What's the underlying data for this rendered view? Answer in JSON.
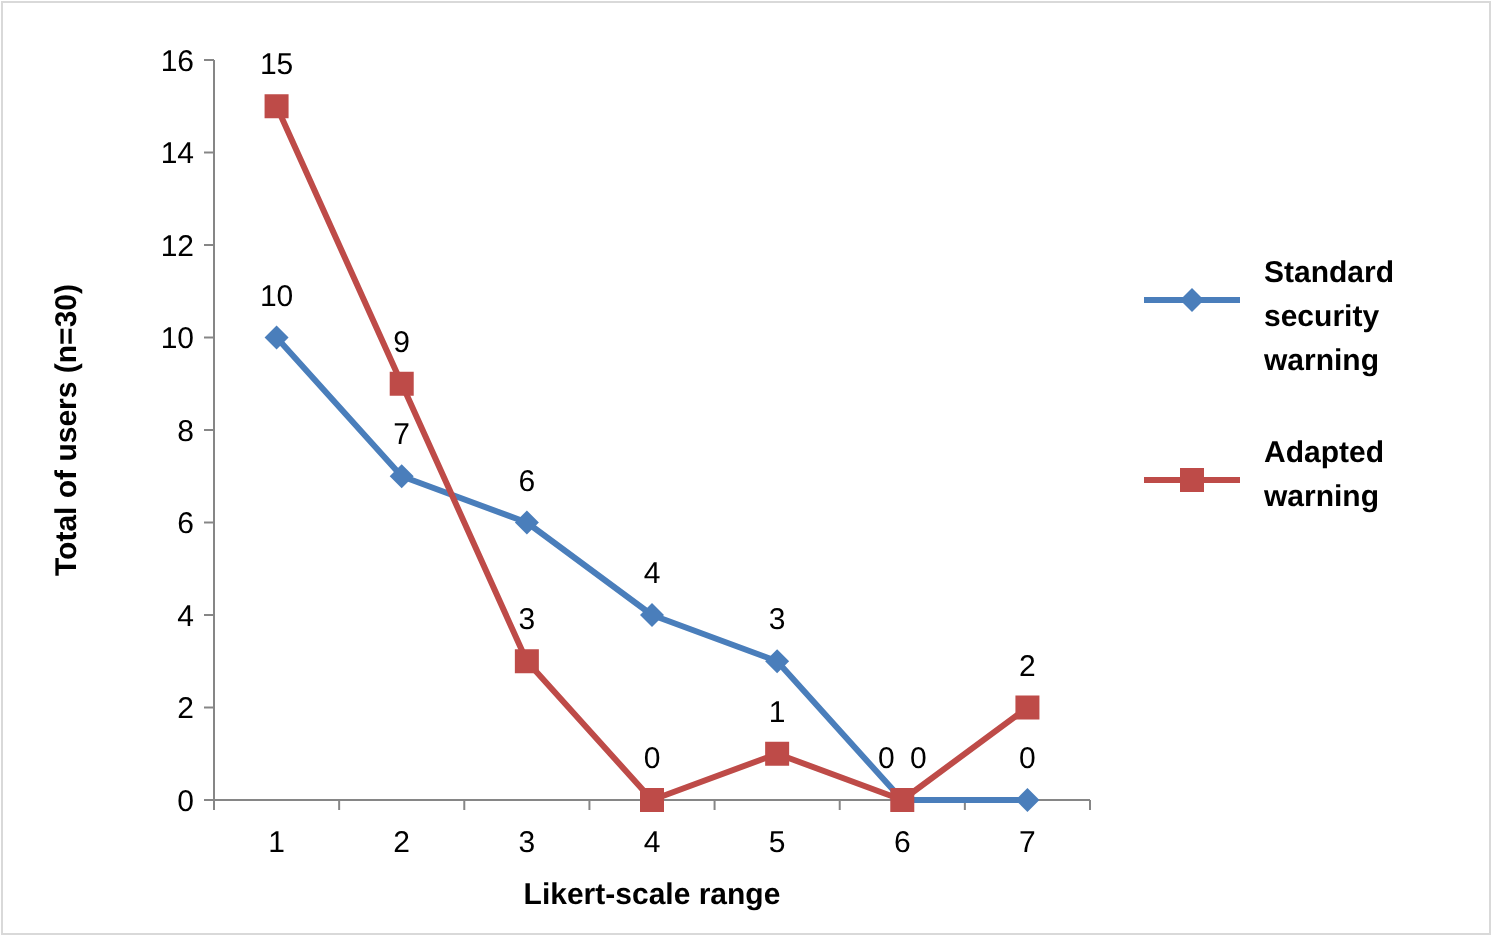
{
  "chart_data": {
    "type": "line",
    "xlabel": "Likert-scale range",
    "ylabel": "Total of users (n=30)",
    "categories": [
      "1",
      "2",
      "3",
      "4",
      "5",
      "6",
      "7"
    ],
    "ylim": [
      0,
      16
    ],
    "yticks": [
      0,
      2,
      4,
      6,
      8,
      10,
      12,
      14,
      16
    ],
    "grid": false,
    "legend": "right",
    "data_labels": true,
    "series": [
      {
        "name": "Standard security warning",
        "color": "#4a7ebb",
        "marker": "diamond",
        "values": [
          10,
          7,
          6,
          4,
          3,
          0,
          0
        ]
      },
      {
        "name": "Adapted warning",
        "color": "#be4b48",
        "marker": "square",
        "values": [
          15,
          9,
          3,
          0,
          1,
          0,
          2
        ]
      }
    ]
  }
}
